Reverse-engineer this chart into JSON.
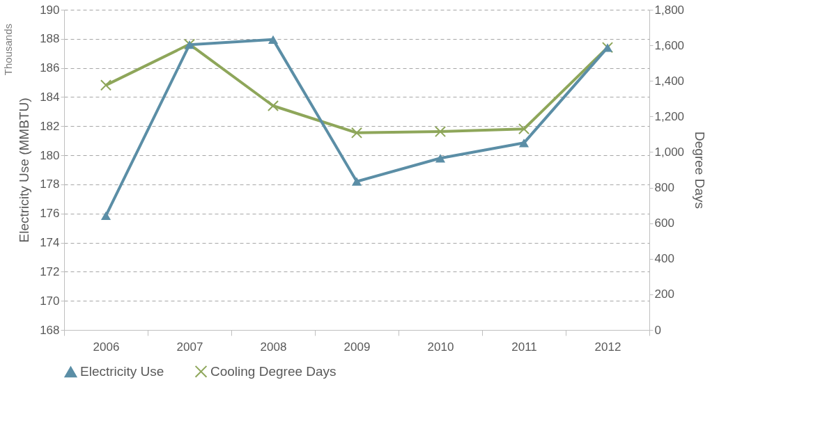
{
  "chart_data": {
    "type": "line",
    "categories": [
      "2006",
      "2007",
      "2008",
      "2009",
      "2010",
      "2011",
      "2012"
    ],
    "ylabel": "Electricity Use (MMBTU)",
    "y2label": "Degree Days",
    "ylim": [
      168,
      190
    ],
    "yticks": [
      168,
      170,
      172,
      174,
      176,
      178,
      180,
      182,
      184,
      186,
      188,
      190
    ],
    "y2lim": [
      0,
      1800
    ],
    "y2ticks": [
      {
        "value": 0,
        "label": "0"
      },
      {
        "value": 200,
        "label": "200"
      },
      {
        "value": 400,
        "label": "400"
      },
      {
        "value": 600,
        "label": "600"
      },
      {
        "value": 800,
        "label": "800"
      },
      {
        "value": 1000,
        "label": "1,000"
      },
      {
        "value": 1200,
        "label": "1,200"
      },
      {
        "value": 1400,
        "label": "1,400"
      },
      {
        "value": 1600,
        "label": "1,600"
      },
      {
        "value": 1800,
        "label": "1,800"
      }
    ],
    "annotations": [
      "Thousands"
    ],
    "grid": "y",
    "legend": "bottom",
    "series": [
      {
        "name": "Electricity Use",
        "color": "#5b8ea6",
        "marker": "triangle",
        "values": [
          175.85,
          187.6,
          187.95,
          178.2,
          179.8,
          180.85,
          187.4
        ]
      },
      {
        "name": "Cooling Degree Days",
        "color": "#8ea65a",
        "marker": "cross",
        "axis": "y2",
        "values": [
          1376,
          1606,
          1260,
          1108,
          1115,
          1130,
          1588
        ]
      }
    ]
  }
}
